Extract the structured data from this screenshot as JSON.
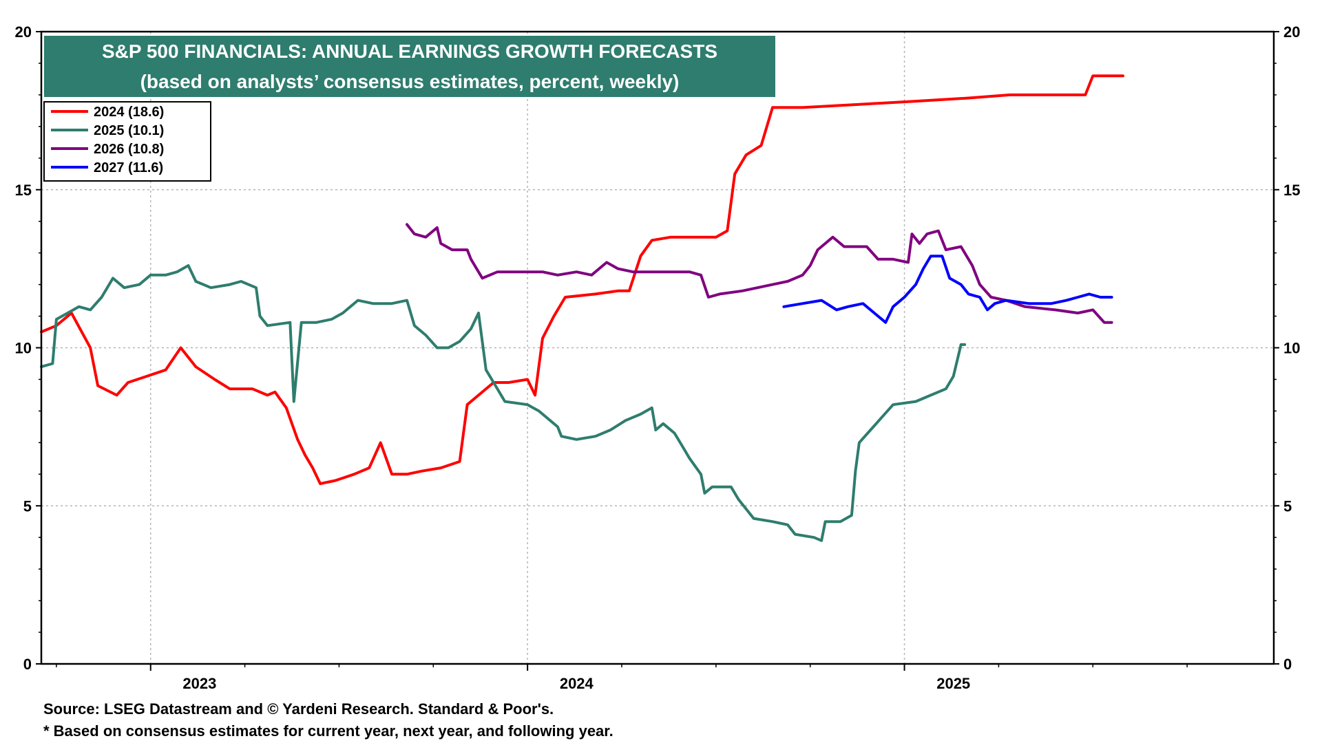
{
  "chart_data": {
    "type": "line",
    "title": "S&P 500 FINANCIALS: ANNUAL EARNINGS GROWTH FORECASTS",
    "subtitle": "(based on analysts’ consensus estimates, percent, weekly)",
    "xlabel": "",
    "ylabel": "",
    "xlim": [
      2022.58,
      2025.85
    ],
    "ylim": [
      0,
      20
    ],
    "y_ticks": [
      0,
      5,
      10,
      15,
      20
    ],
    "x_ticks": [
      2023.0,
      2024.0,
      2025.0
    ],
    "x_tick_labels": [
      "2023",
      "2024",
      "2025"
    ],
    "x_gridlines": [
      2022.87,
      2023.87,
      2024.87
    ],
    "grid": true,
    "legend_position": "top-left",
    "colors": {
      "frame": "#000000",
      "grid": "#b4b4b4",
      "title_bg": "#2e7d6e",
      "title_text": "#ffffff"
    },
    "series": [
      {
        "name": "2024 (18.6)",
        "color": "#ff0000",
        "points": [
          [
            2022.58,
            10.5
          ],
          [
            2022.62,
            10.7
          ],
          [
            2022.66,
            11.1
          ],
          [
            2022.71,
            10.0
          ],
          [
            2022.73,
            8.8
          ],
          [
            2022.78,
            8.5
          ],
          [
            2022.81,
            8.9
          ],
          [
            2022.86,
            9.1
          ],
          [
            2022.91,
            9.3
          ],
          [
            2022.95,
            10.0
          ],
          [
            2022.99,
            9.4
          ],
          [
            2023.04,
            9.0
          ],
          [
            2023.08,
            8.7
          ],
          [
            2023.14,
            8.7
          ],
          [
            2023.18,
            8.5
          ],
          [
            2023.2,
            8.6
          ],
          [
            2023.23,
            8.1
          ],
          [
            2023.26,
            7.1
          ],
          [
            2023.28,
            6.6
          ],
          [
            2023.3,
            6.2
          ],
          [
            2023.32,
            5.7
          ],
          [
            2023.36,
            5.8
          ],
          [
            2023.41,
            6.0
          ],
          [
            2023.45,
            6.2
          ],
          [
            2023.48,
            7.0
          ],
          [
            2023.51,
            6.0
          ],
          [
            2023.55,
            6.0
          ],
          [
            2023.59,
            6.1
          ],
          [
            2023.64,
            6.2
          ],
          [
            2023.69,
            6.4
          ],
          [
            2023.71,
            8.2
          ],
          [
            2023.74,
            8.5
          ],
          [
            2023.78,
            8.9
          ],
          [
            2023.82,
            8.9
          ],
          [
            2023.87,
            9.0
          ],
          [
            2023.89,
            8.5
          ],
          [
            2023.91,
            10.3
          ],
          [
            2023.94,
            11.0
          ],
          [
            2023.97,
            11.6
          ],
          [
            2024.05,
            11.7
          ],
          [
            2024.11,
            11.8
          ],
          [
            2024.14,
            11.8
          ],
          [
            2024.17,
            12.9
          ],
          [
            2024.2,
            13.4
          ],
          [
            2024.25,
            13.5
          ],
          [
            2024.37,
            13.5
          ],
          [
            2024.4,
            13.7
          ],
          [
            2024.42,
            15.5
          ],
          [
            2024.45,
            16.1
          ],
          [
            2024.49,
            16.4
          ],
          [
            2024.52,
            17.6
          ],
          [
            2024.6,
            17.6
          ],
          [
            2024.75,
            17.7
          ],
          [
            2024.9,
            17.8
          ],
          [
            2025.04,
            17.9
          ],
          [
            2025.15,
            18.0
          ],
          [
            2025.35,
            18.0
          ],
          [
            2025.37,
            18.6
          ],
          [
            2025.45,
            18.6
          ]
        ]
      },
      {
        "name": "2025 (10.1)",
        "color": "#2e7d6e",
        "points": [
          [
            2022.58,
            9.4
          ],
          [
            2022.61,
            9.5
          ],
          [
            2022.62,
            10.9
          ],
          [
            2022.65,
            11.1
          ],
          [
            2022.68,
            11.3
          ],
          [
            2022.71,
            11.2
          ],
          [
            2022.74,
            11.6
          ],
          [
            2022.77,
            12.2
          ],
          [
            2022.8,
            11.9
          ],
          [
            2022.84,
            12.0
          ],
          [
            2022.87,
            12.3
          ],
          [
            2022.91,
            12.3
          ],
          [
            2022.94,
            12.4
          ],
          [
            2022.97,
            12.6
          ],
          [
            2022.99,
            12.1
          ],
          [
            2023.03,
            11.9
          ],
          [
            2023.08,
            12.0
          ],
          [
            2023.11,
            12.1
          ],
          [
            2023.15,
            11.9
          ],
          [
            2023.16,
            11.0
          ],
          [
            2023.18,
            10.7
          ],
          [
            2023.24,
            10.8
          ],
          [
            2023.25,
            8.3
          ],
          [
            2023.27,
            10.8
          ],
          [
            2023.31,
            10.8
          ],
          [
            2023.35,
            10.9
          ],
          [
            2023.38,
            11.1
          ],
          [
            2023.42,
            11.5
          ],
          [
            2023.46,
            11.4
          ],
          [
            2023.51,
            11.4
          ],
          [
            2023.55,
            11.5
          ],
          [
            2023.57,
            10.7
          ],
          [
            2023.6,
            10.4
          ],
          [
            2023.63,
            10.0
          ],
          [
            2023.66,
            10.0
          ],
          [
            2023.69,
            10.2
          ],
          [
            2023.72,
            10.6
          ],
          [
            2023.74,
            11.1
          ],
          [
            2023.76,
            9.3
          ],
          [
            2023.78,
            8.9
          ],
          [
            2023.81,
            8.3
          ],
          [
            2023.87,
            8.2
          ],
          [
            2023.9,
            8.0
          ],
          [
            2023.93,
            7.7
          ],
          [
            2023.95,
            7.5
          ],
          [
            2023.96,
            7.2
          ],
          [
            2024.0,
            7.1
          ],
          [
            2024.05,
            7.2
          ],
          [
            2024.09,
            7.4
          ],
          [
            2024.13,
            7.7
          ],
          [
            2024.17,
            7.9
          ],
          [
            2024.2,
            8.1
          ],
          [
            2024.21,
            7.4
          ],
          [
            2024.23,
            7.6
          ],
          [
            2024.26,
            7.3
          ],
          [
            2024.28,
            6.9
          ],
          [
            2024.3,
            6.5
          ],
          [
            2024.33,
            6.0
          ],
          [
            2024.34,
            5.4
          ],
          [
            2024.36,
            5.6
          ],
          [
            2024.41,
            5.6
          ],
          [
            2024.43,
            5.2
          ],
          [
            2024.45,
            4.9
          ],
          [
            2024.47,
            4.6
          ],
          [
            2024.52,
            4.5
          ],
          [
            2024.56,
            4.4
          ],
          [
            2024.58,
            4.1
          ],
          [
            2024.63,
            4.0
          ],
          [
            2024.65,
            3.9
          ],
          [
            2024.66,
            4.5
          ],
          [
            2024.7,
            4.5
          ],
          [
            2024.73,
            4.7
          ],
          [
            2024.74,
            6.1
          ],
          [
            2024.75,
            7.0
          ],
          [
            2024.78,
            7.4
          ],
          [
            2024.81,
            7.8
          ],
          [
            2024.84,
            8.2
          ],
          [
            2024.9,
            8.3
          ],
          [
            2024.94,
            8.5
          ],
          [
            2024.98,
            8.7
          ],
          [
            2025.0,
            9.1
          ],
          [
            2025.02,
            10.1
          ],
          [
            2025.03,
            10.1
          ]
        ]
      },
      {
        "name": "2026 (10.8)",
        "color": "#800080",
        "points": [
          [
            2023.55,
            13.9
          ],
          [
            2023.57,
            13.6
          ],
          [
            2023.6,
            13.5
          ],
          [
            2023.63,
            13.8
          ],
          [
            2023.64,
            13.3
          ],
          [
            2023.67,
            13.1
          ],
          [
            2023.71,
            13.1
          ],
          [
            2023.72,
            12.8
          ],
          [
            2023.75,
            12.2
          ],
          [
            2023.79,
            12.4
          ],
          [
            2023.85,
            12.4
          ],
          [
            2023.91,
            12.4
          ],
          [
            2023.95,
            12.3
          ],
          [
            2024.0,
            12.4
          ],
          [
            2024.04,
            12.3
          ],
          [
            2024.08,
            12.7
          ],
          [
            2024.11,
            12.5
          ],
          [
            2024.15,
            12.4
          ],
          [
            2024.22,
            12.4
          ],
          [
            2024.3,
            12.4
          ],
          [
            2024.33,
            12.3
          ],
          [
            2024.35,
            11.6
          ],
          [
            2024.38,
            11.7
          ],
          [
            2024.44,
            11.8
          ],
          [
            2024.48,
            11.9
          ],
          [
            2024.52,
            12.0
          ],
          [
            2024.56,
            12.1
          ],
          [
            2024.6,
            12.3
          ],
          [
            2024.62,
            12.6
          ],
          [
            2024.64,
            13.1
          ],
          [
            2024.66,
            13.3
          ],
          [
            2024.68,
            13.5
          ],
          [
            2024.71,
            13.2
          ],
          [
            2024.77,
            13.2
          ],
          [
            2024.8,
            12.8
          ],
          [
            2024.84,
            12.8
          ],
          [
            2024.88,
            12.7
          ],
          [
            2024.89,
            13.6
          ],
          [
            2024.91,
            13.3
          ],
          [
            2024.93,
            13.6
          ],
          [
            2024.96,
            13.7
          ],
          [
            2024.98,
            13.1
          ],
          [
            2025.02,
            13.2
          ],
          [
            2025.05,
            12.6
          ],
          [
            2025.07,
            12.0
          ],
          [
            2025.1,
            11.6
          ],
          [
            2025.14,
            11.5
          ],
          [
            2025.19,
            11.3
          ],
          [
            2025.27,
            11.2
          ],
          [
            2025.33,
            11.1
          ],
          [
            2025.37,
            11.2
          ],
          [
            2025.4,
            10.8
          ],
          [
            2025.42,
            10.8
          ]
        ]
      },
      {
        "name": "2027 (11.6)",
        "color": "#0000ff",
        "points": [
          [
            2024.55,
            11.3
          ],
          [
            2024.6,
            11.4
          ],
          [
            2024.65,
            11.5
          ],
          [
            2024.69,
            11.2
          ],
          [
            2024.72,
            11.3
          ],
          [
            2024.76,
            11.4
          ],
          [
            2024.79,
            11.1
          ],
          [
            2024.82,
            10.8
          ],
          [
            2024.84,
            11.3
          ],
          [
            2024.87,
            11.6
          ],
          [
            2024.9,
            12.0
          ],
          [
            2024.92,
            12.5
          ],
          [
            2024.94,
            12.9
          ],
          [
            2024.97,
            12.9
          ],
          [
            2024.99,
            12.2
          ],
          [
            2025.02,
            12.0
          ],
          [
            2025.04,
            11.7
          ],
          [
            2025.07,
            11.6
          ],
          [
            2025.09,
            11.2
          ],
          [
            2025.11,
            11.4
          ],
          [
            2025.14,
            11.5
          ],
          [
            2025.2,
            11.4
          ],
          [
            2025.26,
            11.4
          ],
          [
            2025.3,
            11.5
          ],
          [
            2025.33,
            11.6
          ],
          [
            2025.36,
            11.7
          ],
          [
            2025.39,
            11.6
          ],
          [
            2025.42,
            11.6
          ]
        ]
      }
    ]
  },
  "footnotes": {
    "source": "Source: LSEG Datastream and © Yardeni Research. Standard & Poor's.",
    "note": "* Based on consensus estimates for current year, next year, and following year."
  }
}
